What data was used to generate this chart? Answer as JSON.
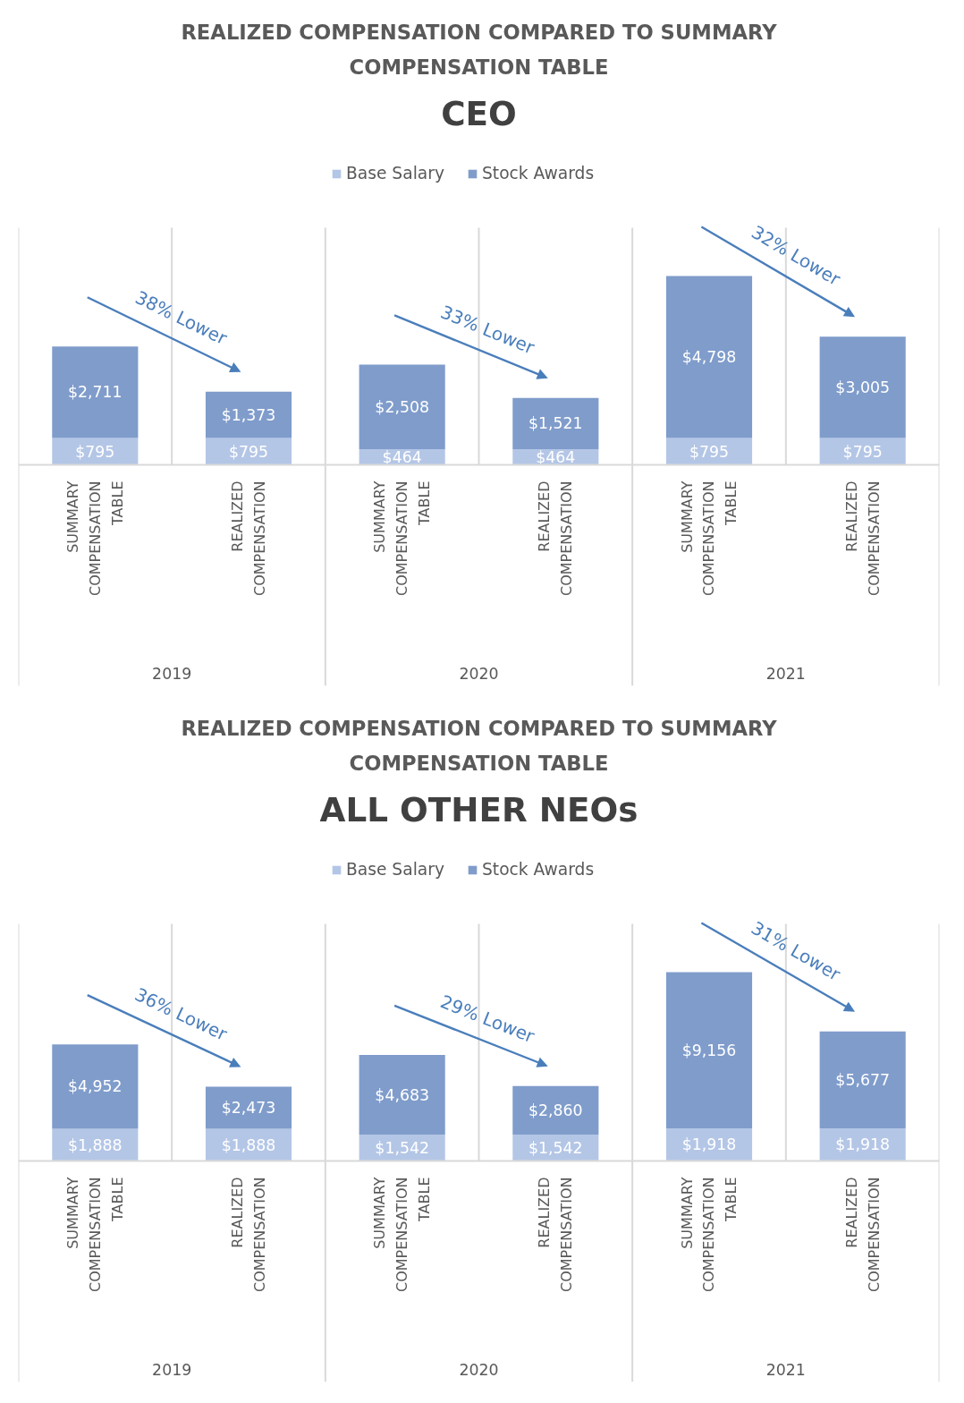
{
  "chart_data": [
    {
      "type": "bar",
      "stacked": true,
      "legend": "top",
      "title": "REALIZED COMPENSATION COMPARED TO SUMMARY COMPENSATION TABLE",
      "subtitle": "CEO",
      "categories": [
        "SUMMARY COMPENSATION TABLE",
        "REALIZED COMPENSATION",
        "SUMMARY COMPENSATION TABLE",
        "REALIZED COMPENSATION",
        "SUMMARY COMPENSATION TABLE",
        "REALIZED COMPENSATION"
      ],
      "series": [
        {
          "name": "Base Salary",
          "color": "#b4c6e6",
          "values": [
            795,
            795,
            464,
            464,
            795,
            795
          ],
          "value_labels": [
            "$795",
            "$795",
            "$464",
            "$464",
            "$795",
            "$795"
          ]
        },
        {
          "name": "Stock Awards",
          "color": "#7f9ccb",
          "values": [
            2711,
            1373,
            2508,
            1521,
            4798,
            3005
          ],
          "value_labels": [
            "$2,711",
            "$1,373",
            "$2,508",
            "$1,521",
            "$4,798",
            "$3,005"
          ]
        }
      ],
      "annotations": [
        "2019",
        "2020",
        "2021",
        "38% Lower",
        "33% Lower",
        "32% Lower"
      ]
    },
    {
      "type": "bar",
      "stacked": true,
      "legend": "top",
      "title": "REALIZED COMPENSATION COMPARED TO SUMMARY COMPENSATION TABLE",
      "subtitle": "ALL OTHER NEOs",
      "categories": [
        "SUMMARY COMPENSATION TABLE",
        "REALIZED COMPENSATION",
        "SUMMARY COMPENSATION TABLE",
        "REALIZED COMPENSATION",
        "SUMMARY COMPENSATION TABLE",
        "REALIZED COMPENSATION"
      ],
      "series": [
        {
          "name": "Base Salary",
          "color": "#b4c6e6",
          "values": [
            1888,
            1888,
            1542,
            1542,
            1918,
            1918
          ],
          "value_labels": [
            "$1,888",
            "$1,888",
            "$1,542",
            "$1,542",
            "$1,918",
            "$1,918"
          ]
        },
        {
          "name": "Stock Awards",
          "color": "#7f9ccb",
          "values": [
            4952,
            2473,
            4683,
            2860,
            9156,
            5677
          ],
          "value_labels": [
            "$4,952",
            "$2,473",
            "$4,683",
            "$2,860",
            "$9,156",
            "$5,677"
          ]
        }
      ],
      "annotations": [
        "2019",
        "2020",
        "2021",
        "36% Lower",
        "29% Lower",
        "31% Lower"
      ]
    }
  ]
}
